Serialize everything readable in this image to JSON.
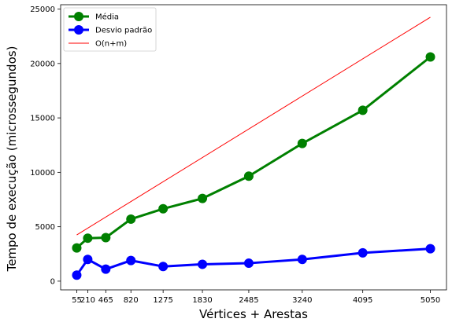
{
  "chart_data": {
    "type": "line",
    "xlabel": "Vértices + Arestas",
    "ylabel": "Tempo de execução (microssegundos)",
    "x": [
      55,
      210,
      465,
      820,
      1275,
      1830,
      2485,
      3240,
      4095,
      5050
    ],
    "x_tick_labels": [
      "55",
      "210",
      "465",
      "820",
      "1275",
      "1830",
      "2485",
      "3240",
      "4095",
      "5050"
    ],
    "xlim": [
      -172.75,
      5277.75
    ],
    "ylim": [
      -800,
      25400
    ],
    "y_ticks": [
      0,
      5000,
      10000,
      15000,
      20000,
      25000
    ],
    "y_tick_labels": [
      "0",
      "5000",
      "10000",
      "15000",
      "20000",
      "25000"
    ],
    "series": [
      {
        "name": "Média",
        "color": "#008000",
        "marker": "circle",
        "values": [
          3050,
          3950,
          4000,
          5700,
          6650,
          7600,
          9650,
          12650,
          15700,
          20600
        ]
      },
      {
        "name": "Desvio padrão",
        "color": "#0000ff",
        "marker": "circle",
        "values": [
          550,
          2000,
          1100,
          1900,
          1350,
          1550,
          1650,
          2000,
          2600,
          2980
        ]
      },
      {
        "name": "O(n+m)",
        "color": "#ff0000",
        "marker": "none",
        "x": [
          55,
          5050
        ],
        "values": [
          4250,
          24250
        ]
      }
    ],
    "legend_position": "top-left",
    "grid": false
  }
}
